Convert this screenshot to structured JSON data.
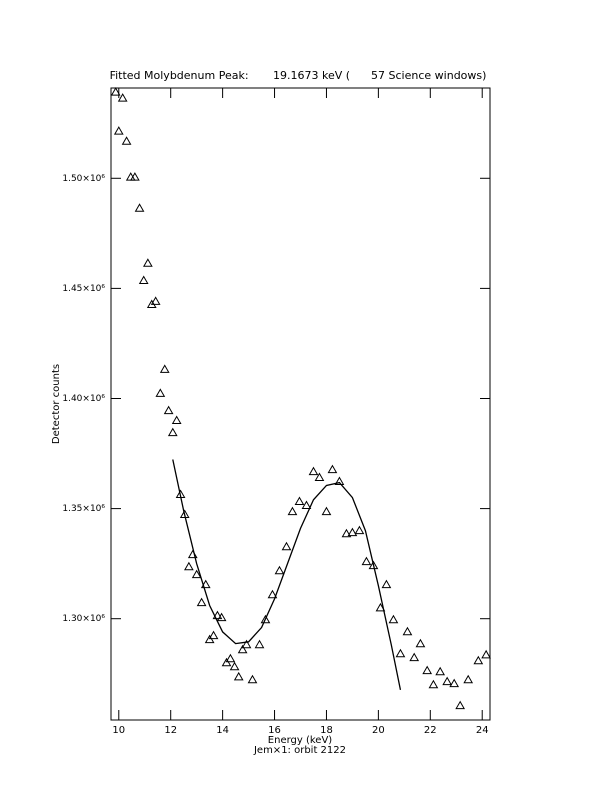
{
  "chart_data": {
    "type": "scatter",
    "title": "Fitted Molybdenum Peak:       19.1673 keV (      57 Science windows)",
    "x_label": "Energy (keV)",
    "subtitle": "Jem×1: orbit 2122",
    "y_label": "Detector counts",
    "xlim": [
      9.7,
      24.3
    ],
    "xticks": [
      10,
      12,
      14,
      16,
      18,
      20,
      22,
      24
    ],
    "ylim": [
      1254000,
      1541000
    ],
    "yticks": [
      {
        "value": 1300000,
        "label": "1.30×10⁶"
      },
      {
        "value": 1350000,
        "label": "1.35×10⁶"
      },
      {
        "value": 1400000,
        "label": "1.40×10⁶"
      },
      {
        "value": 1450000,
        "label": "1.45×10⁶"
      },
      {
        "value": 1500000,
        "label": "1.50×10⁶"
      }
    ],
    "grid": false,
    "series": [
      {
        "type": "scatter",
        "marker": "triangle",
        "color": "#000000",
        "x": [
          9.88,
          10.0,
          10.15,
          10.3,
          10.46,
          10.62,
          10.8,
          10.96,
          11.12,
          11.27,
          11.42,
          11.6,
          11.77,
          11.92,
          12.08,
          12.23,
          12.38,
          12.54,
          12.7,
          12.85,
          13.0,
          13.19,
          13.35,
          13.5,
          13.65,
          13.8,
          13.96,
          14.15,
          14.3,
          14.46,
          14.62,
          14.77,
          14.92,
          15.15,
          15.42,
          15.65,
          15.92,
          16.19,
          16.46,
          16.69,
          16.96,
          17.23,
          17.5,
          17.73,
          18.0,
          18.23,
          18.5,
          18.77,
          19.0,
          19.27,
          19.54,
          19.81,
          20.08,
          20.31,
          20.58,
          20.85,
          21.12,
          21.38,
          21.62,
          21.88,
          22.12,
          22.38,
          22.65,
          22.92,
          23.15,
          23.46,
          23.85,
          24.15
        ],
        "values": [
          1539100,
          1521400,
          1536400,
          1516800,
          1500500,
          1500500,
          1486400,
          1453600,
          1461400,
          1442700,
          1444100,
          1402300,
          1413200,
          1394500,
          1384500,
          1390000,
          1356400,
          1347300,
          1323600,
          1329100,
          1320000,
          1307300,
          1315500,
          1290500,
          1292300,
          1301400,
          1300500,
          1280000,
          1281800,
          1278200,
          1273600,
          1285900,
          1288200,
          1272300,
          1288200,
          1299500,
          1310900,
          1321800,
          1332700,
          1348600,
          1353200,
          1351400,
          1366800,
          1364100,
          1348600,
          1367700,
          1362300,
          1338600,
          1339100,
          1340000,
          1325900,
          1324100,
          1304900,
          1315500,
          1299500,
          1284100,
          1294100,
          1282300,
          1288600,
          1276400,
          1270000,
          1275900,
          1271400,
          1270500,
          1260500,
          1272300,
          1280900,
          1283600
        ]
      },
      {
        "type": "line",
        "color": "#000000",
        "x": [
          12.08,
          12.5,
          13.0,
          13.5,
          14.0,
          14.5,
          15.0,
          15.5,
          16.0,
          16.5,
          17.0,
          17.5,
          18.0,
          18.5,
          19.0,
          19.5,
          20.0,
          20.5,
          20.85
        ],
        "values": [
          1372300,
          1349000,
          1325000,
          1306000,
          1294000,
          1288700,
          1289500,
          1296000,
          1309000,
          1325000,
          1341000,
          1354000,
          1360500,
          1361800,
          1355000,
          1340000,
          1315000,
          1288000,
          1267700
        ]
      }
    ]
  }
}
